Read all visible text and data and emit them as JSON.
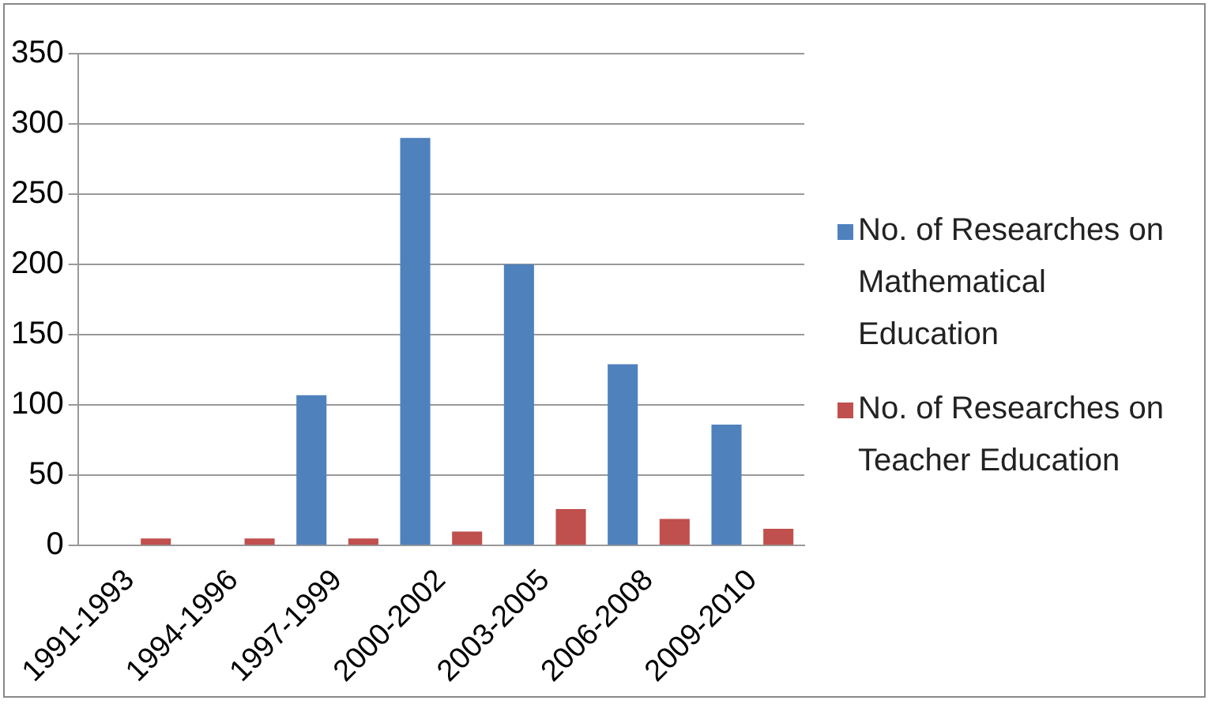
{
  "chart_data": {
    "type": "bar",
    "categories": [
      "1991-1993",
      "1994-1996",
      "1997-1999",
      "2000-2002",
      "2003-2005",
      "2006-2008",
      "2009-2010"
    ],
    "series": [
      {
        "name": "No. of Researches on Mathematical Education",
        "color": "#4f81bd",
        "values": [
          0,
          0,
          107,
          290,
          200,
          129,
          86
        ]
      },
      {
        "name": "No. of Researches on Teacher Education",
        "color": "#c0504d",
        "values": [
          5,
          5,
          5,
          10,
          26,
          19,
          12
        ]
      }
    ],
    "ylim": [
      0,
      350
    ],
    "yticks": [
      0,
      50,
      100,
      150,
      200,
      250,
      300,
      350
    ],
    "grid": "y",
    "legend": "right"
  }
}
